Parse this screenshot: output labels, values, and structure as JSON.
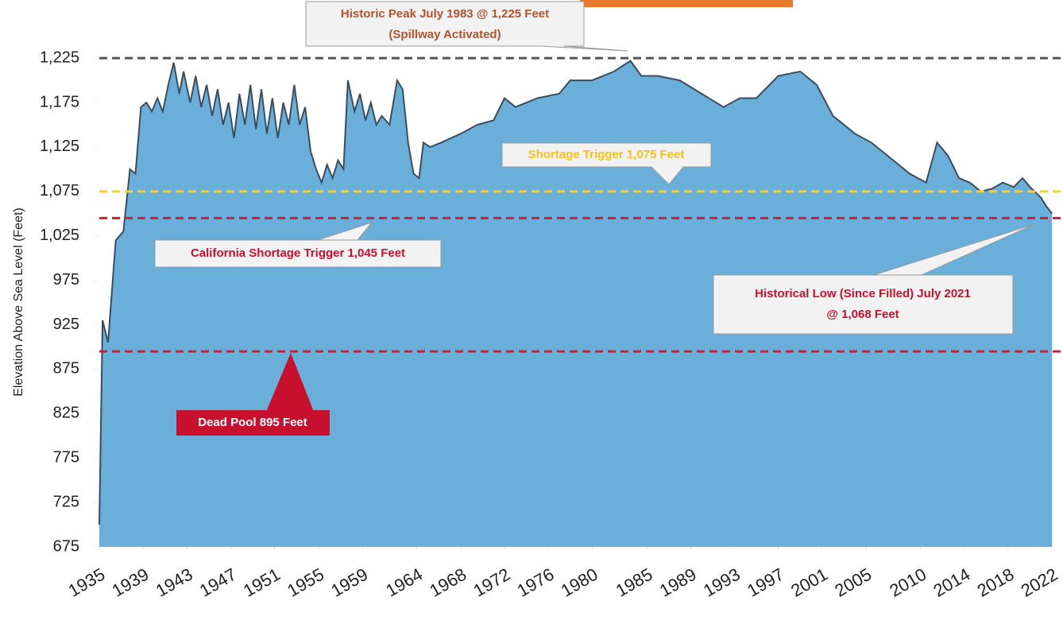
{
  "chart_data": {
    "type": "area",
    "y_axis_label": "Elevation Above Sea Level (Feet)",
    "xlim": [
      1935,
      2023
    ],
    "xticks": [
      1935,
      1939,
      1943,
      1947,
      1951,
      1955,
      1959,
      1964,
      1968,
      1972,
      1976,
      1980,
      1985,
      1989,
      1993,
      1997,
      2001,
      2005,
      2010,
      2014,
      2018,
      2022
    ],
    "ylim": [
      675,
      1235
    ],
    "yticks": [
      675,
      725,
      775,
      825,
      875,
      925,
      975,
      {
        "value": 1025,
        "label": "1,025"
      },
      {
        "value": 1075,
        "label": "1,075"
      },
      {
        "value": 1125,
        "label": "1,125"
      },
      {
        "value": 1175,
        "label": "1,175"
      },
      {
        "value": 1225,
        "label": "1,225"
      }
    ],
    "x": [
      1935,
      1935.3,
      1935.8,
      1936.5,
      1937.2,
      1937.8,
      1938.3,
      1938.8,
      1939.3,
      1939.8,
      1940.3,
      1940.8,
      1941.3,
      1941.8,
      1942.3,
      1942.7,
      1943.3,
      1943.8,
      1944.3,
      1944.8,
      1945.3,
      1945.8,
      1946.3,
      1946.8,
      1947.3,
      1947.8,
      1948.3,
      1948.8,
      1949.3,
      1949.8,
      1950.3,
      1950.8,
      1951.3,
      1951.8,
      1952.3,
      1952.8,
      1953.3,
      1953.8,
      1954.3,
      1954.8,
      1955.3,
      1955.8,
      1956.3,
      1956.8,
      1957.3,
      1957.7,
      1958.3,
      1958.8,
      1959.3,
      1959.8,
      1960.3,
      1960.8,
      1961.5,
      1962.2,
      1962.7,
      1963.2,
      1963.7,
      1964.2,
      1964.6,
      1965.2,
      1966.2,
      1968,
      1969.5,
      1971,
      1972,
      1973,
      1975,
      1977,
      1978,
      1980,
      1982,
      1983.5,
      1984.5,
      1986,
      1988,
      1990,
      1992,
      1993.5,
      1995,
      1997,
      1999,
      2000.5,
      2002,
      2004,
      2005.5,
      2007,
      2009,
      2010.5,
      2011.5,
      2012.5,
      2013.5,
      2014.5,
      2015.5,
      2016.5,
      2017.5,
      2018.5,
      2019.3,
      2020,
      2021,
      2021.5,
      2022
    ],
    "series": [
      {
        "color": "#6aafd9",
        "line_color": "#3d4c5c",
        "values": [
          700,
          930,
          905,
          1020,
          1030,
          1100,
          1095,
          1170,
          1175,
          1165,
          1180,
          1165,
          1195,
          1220,
          1185,
          1210,
          1175,
          1205,
          1170,
          1195,
          1160,
          1190,
          1150,
          1175,
          1135,
          1185,
          1150,
          1195,
          1145,
          1190,
          1140,
          1180,
          1135,
          1175,
          1150,
          1195,
          1150,
          1170,
          1120,
          1100,
          1085,
          1105,
          1090,
          1110,
          1100,
          1200,
          1165,
          1185,
          1155,
          1175,
          1150,
          1160,
          1150,
          1200,
          1190,
          1130,
          1095,
          1090,
          1130,
          1125,
          1130,
          1140,
          1150,
          1155,
          1180,
          1170,
          1180,
          1185,
          1200,
          1200,
          1210,
          1222,
          1205,
          1205,
          1200,
          1185,
          1170,
          1180,
          1180,
          1205,
          1210,
          1195,
          1160,
          1140,
          1130,
          1115,
          1095,
          1085,
          1130,
          1115,
          1090,
          1085,
          1075,
          1078,
          1085,
          1080,
          1090,
          1080,
          1068,
          1058,
          1050
        ]
      }
    ],
    "reference_lines": [
      {
        "value": 1225,
        "color": "#555555"
      },
      {
        "value": 1075,
        "color": "#f2d22e"
      },
      {
        "value": 1045,
        "color": "#cc1f3c"
      },
      {
        "value": 895,
        "color": "#cc1f3c"
      }
    ],
    "annotations": [
      {
        "lines": [
          "Historic Peak July 1983 @ 1,225 Feet",
          "(Spillway Activated)"
        ],
        "color": "#b0532b"
      },
      {
        "lines": [
          "Shortage Trigger 1,075 Feet"
        ],
        "color": "#f3c21b"
      },
      {
        "lines": [
          "California Shortage Trigger 1,045 Feet"
        ],
        "color": "#c8102e"
      },
      {
        "lines": [
          "Historical Low (Since Filled) July 2021",
          "@ 1,068 Feet"
        ],
        "color": "#c8102e"
      },
      {
        "lines": [
          "Dead Pool 895 Feet"
        ],
        "color": "#ffffff"
      }
    ]
  }
}
